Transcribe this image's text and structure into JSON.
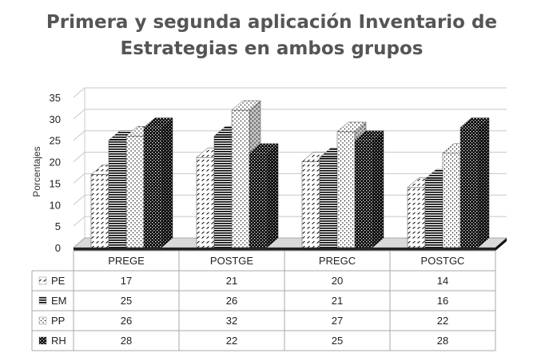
{
  "chart_data": {
    "type": "bar",
    "title": [
      "Primera y segunda aplicación Inventario de",
      "Estrategias en ambos grupos"
    ],
    "ylabel": "Porcentajes",
    "ylim": [
      0,
      35
    ],
    "yticks": [
      0,
      5,
      10,
      15,
      20,
      25,
      30,
      35
    ],
    "grid": true,
    "legend": "table-below",
    "categories": [
      "PREGE",
      "POSTGE",
      "PREGC",
      "POSTGC"
    ],
    "series": [
      {
        "name": "PE",
        "values": [
          17,
          21,
          20,
          14
        ],
        "pattern": "diag-dash"
      },
      {
        "name": "EM",
        "values": [
          25,
          26,
          21,
          16
        ],
        "pattern": "horizontal"
      },
      {
        "name": "PP",
        "values": [
          26,
          32,
          27,
          22
        ],
        "pattern": "dots"
      },
      {
        "name": "RH",
        "values": [
          28,
          22,
          25,
          28
        ],
        "pattern": "checker"
      }
    ]
  }
}
